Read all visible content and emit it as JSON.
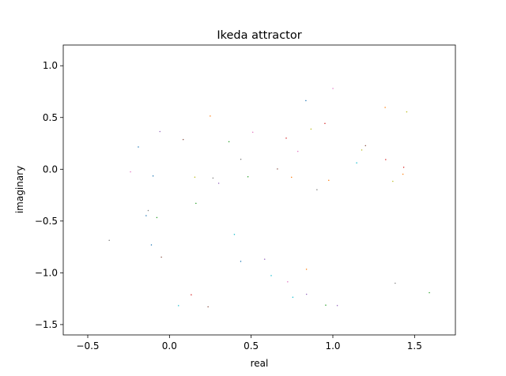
{
  "chart_data": {
    "type": "scatter",
    "title": "Ikeda attractor",
    "xlabel": "real",
    "ylabel": "imaginary",
    "xlim": [
      -0.65,
      1.75
    ],
    "ylim": [
      -1.6,
      1.2
    ],
    "xticks": [
      -0.5,
      0.0,
      0.5,
      1.0,
      1.5
    ],
    "xtick_labels": [
      "−0.5",
      "0.0",
      "0.5",
      "1.0",
      "1.5"
    ],
    "yticks": [
      -1.5,
      -1.0,
      -0.5,
      0.0,
      0.5,
      1.0
    ],
    "ytick_labels": [
      "−1.5",
      "−1.0",
      "−0.5",
      "0.0",
      "0.5",
      "1.0"
    ],
    "grid": false,
    "legend": "none",
    "ikeda": {
      "u": 0.918,
      "start": [
        0.0,
        0.0
      ],
      "iterations": 6000,
      "discard": 50
    },
    "series_colors": [
      "#1f77b4",
      "#ff7f0e",
      "#2ca02c",
      "#d62728",
      "#9467bd",
      "#8c564b",
      "#e377c2",
      "#7f7f7f",
      "#bcbd22",
      "#17becf"
    ]
  }
}
